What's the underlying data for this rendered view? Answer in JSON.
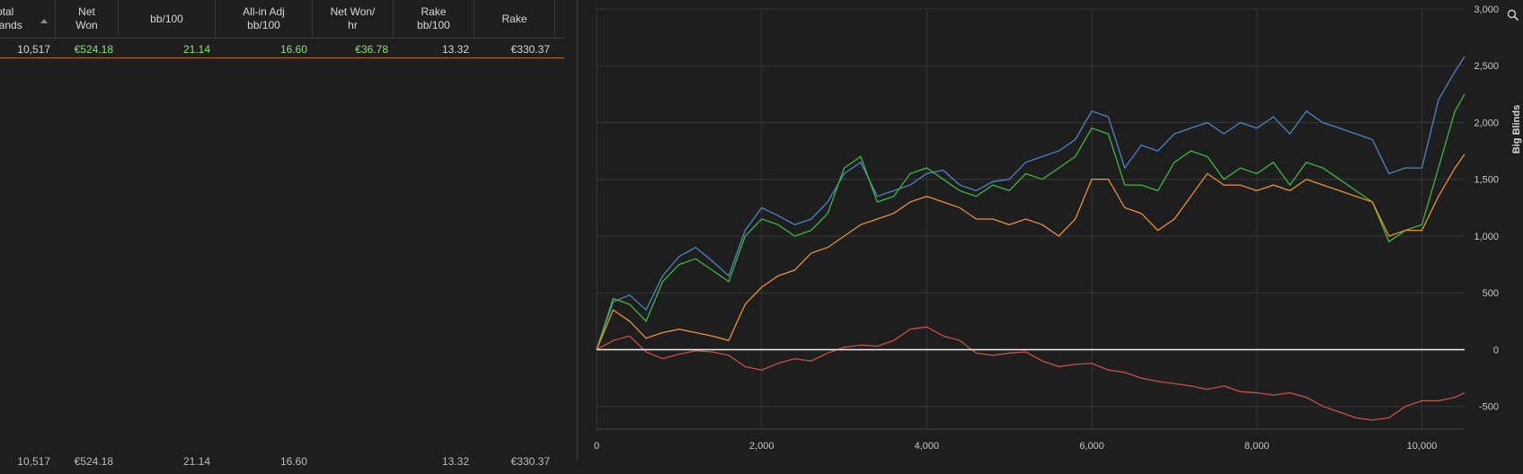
{
  "table": {
    "headers": [
      {
        "label": "Total\nHands"
      },
      {
        "label": "Net\nWon"
      },
      {
        "label": "bb/100"
      },
      {
        "label": "All-in Adj\nbb/100"
      },
      {
        "label": "Net Won/\nhr"
      },
      {
        "label": "Rake\nbb/100"
      },
      {
        "label": "Rake"
      }
    ],
    "row": [
      "10,517",
      "€524.18",
      "21.14",
      "16.60",
      "€36.78",
      "13.32",
      "€330.37"
    ],
    "totals": [
      "10,517",
      "€524.18",
      "21.14",
      "16.60",
      "",
      "13.32",
      "€330.37"
    ]
  },
  "chart_data": {
    "type": "line",
    "xlim": [
      0,
      10517
    ],
    "ylim": [
      -700,
      3000
    ],
    "xticks": [
      "0",
      "2,000",
      "4,000",
      "6,000",
      "8,000",
      "10,000"
    ],
    "xtick_values": [
      0,
      2000,
      4000,
      6000,
      8000,
      10000
    ],
    "yticks": [
      "3,000",
      "2,500",
      "2,000",
      "1,500",
      "1,000",
      "500",
      "0",
      "-500"
    ],
    "ytick_values": [
      3000,
      2500,
      2000,
      1500,
      1000,
      500,
      0,
      -500
    ],
    "ylabel": "Big Blinds",
    "xlabel": "",
    "grid": true,
    "series": [
      {
        "color": "#4a86c8",
        "x": [
          0,
          200,
          400,
          600,
          800,
          1000,
          1200,
          1400,
          1600,
          1800,
          2000,
          2200,
          2400,
          2600,
          2800,
          3000,
          3200,
          3400,
          3600,
          3800,
          4000,
          4200,
          4400,
          4600,
          4800,
          5000,
          5200,
          5400,
          5600,
          5800,
          6000,
          6200,
          6400,
          6600,
          6800,
          7000,
          7200,
          7400,
          7600,
          7800,
          8000,
          8200,
          8400,
          8600,
          8800,
          9000,
          9200,
          9400,
          9600,
          9800,
          10000,
          10200,
          10400,
          10517
        ],
        "y": [
          0,
          420,
          480,
          350,
          650,
          820,
          900,
          780,
          650,
          1050,
          1250,
          1180,
          1100,
          1150,
          1300,
          1550,
          1650,
          1350,
          1400,
          1450,
          1550,
          1580,
          1450,
          1400,
          1480,
          1500,
          1650,
          1700,
          1750,
          1850,
          2100,
          2050,
          1600,
          1800,
          1750,
          1900,
          1950,
          2000,
          1900,
          2000,
          1950,
          2050,
          1900,
          2100,
          2000,
          1950,
          1900,
          1850,
          1550,
          1600,
          1600,
          2200,
          2450,
          2580
        ]
      },
      {
        "color": "#3fb83f",
        "x": [
          0,
          200,
          400,
          600,
          800,
          1000,
          1200,
          1400,
          1600,
          1800,
          2000,
          2200,
          2400,
          2600,
          2800,
          3000,
          3200,
          3400,
          3600,
          3800,
          4000,
          4200,
          4400,
          4600,
          4800,
          5000,
          5200,
          5400,
          5600,
          5800,
          6000,
          6200,
          6400,
          6600,
          6800,
          7000,
          7200,
          7400,
          7600,
          7800,
          8000,
          8200,
          8400,
          8600,
          8800,
          9000,
          9200,
          9400,
          9600,
          9800,
          10000,
          10200,
          10400,
          10517
        ],
        "y": [
          0,
          450,
          400,
          250,
          600,
          750,
          800,
          700,
          600,
          1000,
          1150,
          1100,
          1000,
          1050,
          1200,
          1600,
          1700,
          1300,
          1350,
          1550,
          1600,
          1500,
          1400,
          1350,
          1450,
          1400,
          1550,
          1500,
          1600,
          1700,
          1950,
          1900,
          1450,
          1450,
          1400,
          1650,
          1750,
          1700,
          1500,
          1600,
          1550,
          1650,
          1450,
          1650,
          1600,
          1500,
          1400,
          1300,
          950,
          1050,
          1100,
          1600,
          2100,
          2250
        ]
      },
      {
        "color": "#e8903a",
        "x": [
          0,
          200,
          400,
          600,
          800,
          1000,
          1200,
          1400,
          1600,
          1800,
          2000,
          2200,
          2400,
          2600,
          2800,
          3000,
          3200,
          3400,
          3600,
          3800,
          4000,
          4200,
          4400,
          4600,
          4800,
          5000,
          5200,
          5400,
          5600,
          5800,
          6000,
          6200,
          6400,
          6600,
          6800,
          7000,
          7200,
          7400,
          7600,
          7800,
          8000,
          8200,
          8400,
          8600,
          8800,
          9000,
          9200,
          9400,
          9600,
          9800,
          10000,
          10200,
          10400,
          10517
        ],
        "y": [
          0,
          350,
          250,
          100,
          150,
          180,
          150,
          120,
          80,
          400,
          550,
          650,
          700,
          850,
          900,
          1000,
          1100,
          1150,
          1200,
          1300,
          1350,
          1300,
          1250,
          1150,
          1150,
          1100,
          1150,
          1100,
          1000,
          1150,
          1500,
          1500,
          1250,
          1200,
          1050,
          1150,
          1350,
          1550,
          1450,
          1450,
          1400,
          1450,
          1400,
          1500,
          1450,
          1400,
          1350,
          1300,
          1000,
          1050,
          1050,
          1350,
          1600,
          1720
        ]
      },
      {
        "color": "#c9504a",
        "x": [
          0,
          200,
          400,
          600,
          800,
          1000,
          1200,
          1400,
          1600,
          1800,
          2000,
          2200,
          2400,
          2600,
          2800,
          3000,
          3200,
          3400,
          3600,
          3800,
          4000,
          4200,
          4400,
          4600,
          4800,
          5000,
          5200,
          5400,
          5600,
          5800,
          6000,
          6200,
          6400,
          6600,
          6800,
          7000,
          7200,
          7400,
          7600,
          7800,
          8000,
          8200,
          8400,
          8600,
          8800,
          9000,
          9200,
          9400,
          9600,
          9800,
          10000,
          10200,
          10400,
          10517
        ],
        "y": [
          0,
          80,
          120,
          -20,
          -80,
          -40,
          -10,
          -20,
          -50,
          -150,
          -180,
          -120,
          -80,
          -100,
          -30,
          20,
          40,
          30,
          80,
          180,
          200,
          120,
          80,
          -30,
          -50,
          -30,
          -20,
          -100,
          -150,
          -130,
          -120,
          -180,
          -200,
          -250,
          -280,
          -300,
          -320,
          -350,
          -320,
          -370,
          -380,
          -400,
          -380,
          -420,
          -500,
          -550,
          -600,
          -620,
          -600,
          -500,
          -450,
          -450,
          -420,
          -380
        ]
      },
      {
        "color": "#f2f2f2",
        "x": [
          0,
          10517
        ],
        "y": [
          0,
          0
        ]
      }
    ]
  }
}
